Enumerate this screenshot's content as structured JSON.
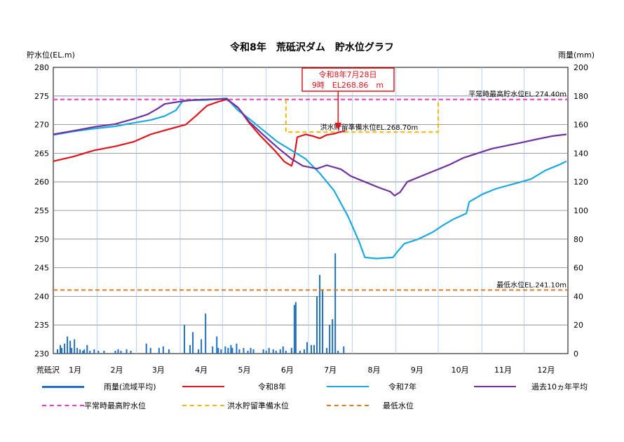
{
  "chart_data": {
    "type": "line",
    "title": "令和8年　荒砥沢ダム　貯水位グラフ",
    "ylabel_left": "貯水位(EL.m)",
    "ylabel_right": "雨量(mm)",
    "x_corner_label": "荒砥沢",
    "ylim_left": [
      230,
      280
    ],
    "ylim_right": [
      0,
      200
    ],
    "yticks_left": [
      230,
      235,
      240,
      245,
      250,
      255,
      260,
      265,
      270,
      275,
      280
    ],
    "yticks_right": [
      0,
      20,
      40,
      60,
      80,
      100,
      120,
      140,
      160,
      180,
      200
    ],
    "months": [
      "1月",
      "2月",
      "3月",
      "4月",
      "5月",
      "6月",
      "7月",
      "8月",
      "9月",
      "10月",
      "11月",
      "12月"
    ],
    "x_unit": "day of year (1-365)",
    "grid": true,
    "reference_lines": [
      {
        "name": "平常時最高貯水位",
        "value": 274.4,
        "label": "平常時最高貯水位EL.274.40m",
        "color": "#ff33cc"
      },
      {
        "name": "最低水位",
        "value": 241.1,
        "label": "最低水位EL.241.10m",
        "color": "#e07b20"
      }
    ],
    "flood_level": {
      "name": "洪水貯留準備水位",
      "value": 268.7,
      "label": "洪水貯留準備水位EL.268.70m",
      "x_start": 166,
      "x_end": 274,
      "color": "#f5b800"
    },
    "annotation": {
      "line1": "令和8年7月28日",
      "line2": "9時　EL268.86　m",
      "x": 208,
      "y": 268.86
    },
    "series": [
      {
        "name": "令和8年",
        "color": "#e0151b",
        "axis": "left",
        "points": [
          [
            1,
            263.6
          ],
          [
            15,
            264.4
          ],
          [
            30,
            265.5
          ],
          [
            45,
            266.2
          ],
          [
            58,
            267.0
          ],
          [
            70,
            268.3
          ],
          [
            80,
            269.0
          ],
          [
            95,
            270.0
          ],
          [
            102,
            271.5
          ],
          [
            110,
            273.3
          ],
          [
            118,
            274.0
          ],
          [
            124,
            274.4
          ],
          [
            132,
            273.0
          ],
          [
            140,
            270.3
          ],
          [
            148,
            268.0
          ],
          [
            158,
            265.5
          ],
          [
            165,
            263.5
          ],
          [
            170,
            262.8
          ],
          [
            172,
            264.5
          ],
          [
            174,
            267.8
          ],
          [
            180,
            268.3
          ],
          [
            185,
            268.0
          ],
          [
            190,
            267.6
          ],
          [
            195,
            268.2
          ],
          [
            200,
            268.4
          ],
          [
            204,
            268.7
          ],
          [
            208,
            268.86
          ]
        ]
      },
      {
        "name": "令和7年",
        "color": "#1ba9e0",
        "axis": "left",
        "points": [
          [
            1,
            268.2
          ],
          [
            15,
            268.8
          ],
          [
            30,
            269.3
          ],
          [
            45,
            269.7
          ],
          [
            58,
            270.3
          ],
          [
            70,
            270.8
          ],
          [
            80,
            271.5
          ],
          [
            88,
            272.5
          ],
          [
            93,
            274.2
          ],
          [
            110,
            274.3
          ],
          [
            124,
            274.6
          ],
          [
            132,
            272.5
          ],
          [
            140,
            271.0
          ],
          [
            150,
            269.0
          ],
          [
            160,
            267.0
          ],
          [
            170,
            265.5
          ],
          [
            180,
            264.0
          ],
          [
            190,
            261.5
          ],
          [
            200,
            258.5
          ],
          [
            210,
            254.0
          ],
          [
            218,
            249.5
          ],
          [
            222,
            246.8
          ],
          [
            230,
            246.6
          ],
          [
            242,
            246.8
          ],
          [
            245,
            247.8
          ],
          [
            250,
            249.2
          ],
          [
            260,
            250.0
          ],
          [
            270,
            251.2
          ],
          [
            278,
            252.5
          ],
          [
            285,
            253.5
          ],
          [
            294,
            254.5
          ],
          [
            296,
            256.5
          ],
          [
            305,
            257.8
          ],
          [
            315,
            258.8
          ],
          [
            330,
            259.8
          ],
          [
            340,
            260.5
          ],
          [
            350,
            262.0
          ],
          [
            360,
            263.0
          ],
          [
            365,
            263.6
          ]
        ]
      },
      {
        "name": "過去10ヵ年平均",
        "color": "#7030a0",
        "axis": "left",
        "points": [
          [
            1,
            268.3
          ],
          [
            15,
            268.9
          ],
          [
            30,
            269.6
          ],
          [
            45,
            270.1
          ],
          [
            58,
            271.0
          ],
          [
            68,
            271.8
          ],
          [
            75,
            272.8
          ],
          [
            80,
            273.6
          ],
          [
            90,
            274.0
          ],
          [
            100,
            274.3
          ],
          [
            110,
            274.4
          ],
          [
            124,
            274.5
          ],
          [
            132,
            273.0
          ],
          [
            140,
            270.5
          ],
          [
            150,
            268.2
          ],
          [
            160,
            266.0
          ],
          [
            170,
            264.0
          ],
          [
            178,
            262.8
          ],
          [
            188,
            262.3
          ],
          [
            195,
            262.9
          ],
          [
            205,
            262.2
          ],
          [
            212,
            261.0
          ],
          [
            222,
            260.0
          ],
          [
            232,
            259.0
          ],
          [
            240,
            258.3
          ],
          [
            243,
            257.6
          ],
          [
            247,
            258.2
          ],
          [
            252,
            260.0
          ],
          [
            262,
            261.0
          ],
          [
            272,
            262.0
          ],
          [
            282,
            263.0
          ],
          [
            292,
            264.2
          ],
          [
            302,
            265.0
          ],
          [
            312,
            265.8
          ],
          [
            322,
            266.3
          ],
          [
            332,
            266.8
          ],
          [
            345,
            267.5
          ],
          [
            355,
            268.0
          ],
          [
            365,
            268.3
          ]
        ]
      }
    ],
    "rain": {
      "name": "雨量(流域平均)",
      "color": "#1f6fbf",
      "axis": "right",
      "days": [
        4,
        6,
        7,
        9,
        11,
        13,
        14,
        16,
        18,
        20,
        22,
        23,
        25,
        27,
        30,
        33,
        37,
        45,
        47,
        49,
        53,
        56,
        67,
        70,
        76,
        79,
        83,
        94,
        98,
        100,
        104,
        106,
        109,
        114,
        117,
        118,
        120,
        123,
        125,
        127,
        128,
        131,
        133,
        136,
        139,
        141,
        143,
        150,
        152,
        154,
        157,
        159,
        162,
        164,
        166,
        170,
        172,
        173,
        176,
        179,
        181,
        184,
        186,
        188,
        190,
        192,
        195,
        197,
        199,
        201,
        203,
        207
      ],
      "values": [
        3,
        6,
        4,
        7,
        12,
        9,
        4,
        10,
        4,
        3,
        2,
        3,
        6,
        2,
        3,
        2,
        2,
        2,
        3,
        2,
        3,
        2,
        7,
        4,
        4,
        5,
        3,
        20,
        6,
        15,
        3,
        10,
        28,
        5,
        12,
        4,
        3,
        5,
        4,
        6,
        4,
        7,
        3,
        4,
        2,
        4,
        3,
        3,
        2,
        4,
        3,
        2,
        3,
        5,
        2,
        4,
        34,
        36,
        2,
        3,
        8,
        6,
        6,
        40,
        55,
        45,
        4,
        20,
        24,
        70,
        2,
        5
      ]
    }
  },
  "legend": [
    {
      "label": "雨量(流域平均)",
      "color": "#1f6fbf",
      "style": "solid"
    },
    {
      "label": "令和8年",
      "color": "#e0151b",
      "style": "solid"
    },
    {
      "label": "令和7年",
      "color": "#1ba9e0",
      "style": "solid"
    },
    {
      "label": "過去10ヵ年平均",
      "color": "#7030a0",
      "style": "solid"
    },
    {
      "label": "平常時最高貯水位",
      "color": "#ff33cc",
      "style": "dashed"
    },
    {
      "label": "洪水貯留準備水位",
      "color": "#f5b800",
      "style": "dashed"
    },
    {
      "label": "最低水位",
      "color": "#e07b20",
      "style": "dashed"
    }
  ]
}
